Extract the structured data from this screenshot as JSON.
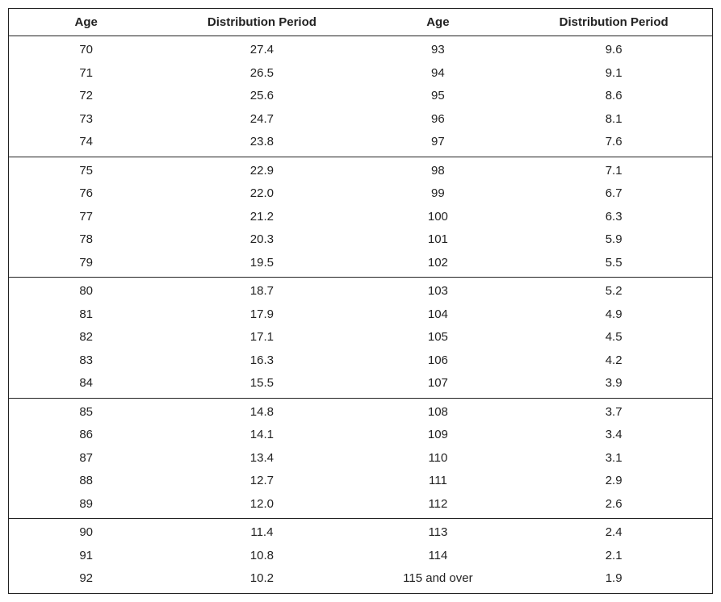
{
  "table": {
    "headers": {
      "age": "Age",
      "distribution": "Distribution Period"
    },
    "groups": [
      {
        "left": [
          [
            "70",
            "27.4"
          ],
          [
            "71",
            "26.5"
          ],
          [
            "72",
            "25.6"
          ],
          [
            "73",
            "24.7"
          ],
          [
            "74",
            "23.8"
          ]
        ],
        "right": [
          [
            "93",
            "9.6"
          ],
          [
            "94",
            "9.1"
          ],
          [
            "95",
            "8.6"
          ],
          [
            "96",
            "8.1"
          ],
          [
            "97",
            "7.6"
          ]
        ]
      },
      {
        "left": [
          [
            "75",
            "22.9"
          ],
          [
            "76",
            "22.0"
          ],
          [
            "77",
            "21.2"
          ],
          [
            "78",
            "20.3"
          ],
          [
            "79",
            "19.5"
          ]
        ],
        "right": [
          [
            "98",
            "7.1"
          ],
          [
            "99",
            "6.7"
          ],
          [
            "100",
            "6.3"
          ],
          [
            "101",
            "5.9"
          ],
          [
            "102",
            "5.5"
          ]
        ]
      },
      {
        "left": [
          [
            "80",
            "18.7"
          ],
          [
            "81",
            "17.9"
          ],
          [
            "82",
            "17.1"
          ],
          [
            "83",
            "16.3"
          ],
          [
            "84",
            "15.5"
          ]
        ],
        "right": [
          [
            "103",
            "5.2"
          ],
          [
            "104",
            "4.9"
          ],
          [
            "105",
            "4.5"
          ],
          [
            "106",
            "4.2"
          ],
          [
            "107",
            "3.9"
          ]
        ]
      },
      {
        "left": [
          [
            "85",
            "14.8"
          ],
          [
            "86",
            "14.1"
          ],
          [
            "87",
            "13.4"
          ],
          [
            "88",
            "12.7"
          ],
          [
            "89",
            "12.0"
          ]
        ],
        "right": [
          [
            "108",
            "3.7"
          ],
          [
            "109",
            "3.4"
          ],
          [
            "110",
            "3.1"
          ],
          [
            "111",
            "2.9"
          ],
          [
            "112",
            "2.6"
          ]
        ]
      },
      {
        "left": [
          [
            "90",
            "11.4"
          ],
          [
            "91",
            "10.8"
          ],
          [
            "92",
            "10.2"
          ]
        ],
        "right": [
          [
            "113",
            "2.4"
          ],
          [
            "114",
            "2.1"
          ],
          [
            "115 and over",
            "1.9"
          ]
        ]
      }
    ]
  }
}
